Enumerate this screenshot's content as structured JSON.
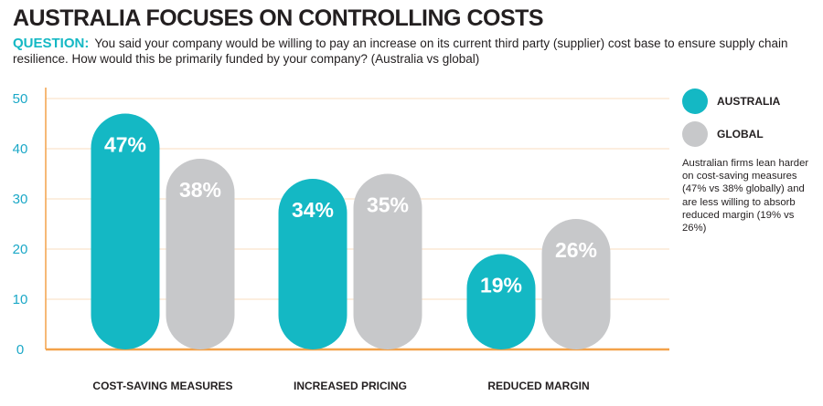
{
  "header": {
    "title": "AUSTRALIA FOCUSES ON CONTROLLING COSTS",
    "question_label": "QUESTION:",
    "question_text": "You said your company would be willing to pay an increase on its current third party (supplier) cost base to ensure supply chain resilience. How would this be primarily funded by your company? (Australia vs global)"
  },
  "legend": {
    "items": [
      {
        "label": "AUSTRALIA",
        "color": "#14b8c4"
      },
      {
        "label": "GLOBAL",
        "color": "#c7c8ca"
      }
    ],
    "note": "Australian firms lean harder on cost-saving measures (47% vs 38% globally) and are less willing to absorb reduced margin (19% vs 26%)"
  },
  "chart_data": {
    "type": "bar",
    "title": "AUSTRALIA FOCUSES ON CONTROLLING COSTS",
    "categories": [
      "COST-SAVING MEASURES",
      "INCREASED PRICING",
      "REDUCED MARGIN"
    ],
    "series": [
      {
        "name": "AUSTRALIA",
        "values": [
          47,
          34,
          19
        ],
        "labels": [
          "47%",
          "34%",
          "19%"
        ],
        "color": "#14b8c4"
      },
      {
        "name": "GLOBAL",
        "values": [
          38,
          35,
          26
        ],
        "labels": [
          "38%",
          "35%",
          "26%"
        ],
        "color": "#c7c8ca"
      }
    ],
    "ylim": [
      0,
      50
    ],
    "yticks": [
      0,
      10,
      20,
      30,
      40,
      50
    ],
    "grid": true,
    "axis_color": "#1ba8c7",
    "grid_color": "#f3a24a",
    "xlabel": "",
    "ylabel": "",
    "legend_position": "right"
  }
}
